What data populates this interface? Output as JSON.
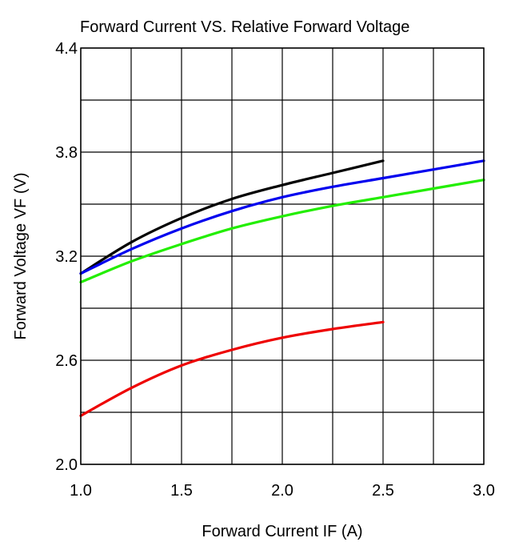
{
  "chart_data": {
    "type": "line",
    "title": "Forward Current VS.  Relative Forward Voltage",
    "xlabel": "Forward Current IF  (A)",
    "ylabel": "Forward  Voltage  VF  (V)",
    "xlim": [
      1.0,
      3.0
    ],
    "ylim": [
      2.0,
      4.4
    ],
    "x_ticks": [
      "1.0",
      "1.5",
      "2.0",
      "2.5",
      "3.0"
    ],
    "y_ticks": [
      "2.0",
      "2.6",
      "3.2",
      "3.8",
      "4.4"
    ],
    "x_gridlines": [
      1.0,
      1.25,
      1.5,
      1.75,
      2.0,
      2.25,
      2.5,
      2.75,
      3.0
    ],
    "y_gridlines": [
      2.0,
      2.3,
      2.6,
      2.9,
      3.2,
      3.5,
      3.8,
      4.1,
      4.4
    ],
    "grid": true,
    "series": [
      {
        "color": "#000000",
        "x": [
          1.0,
          1.25,
          1.5,
          1.75,
          2.0,
          2.25,
          2.5
        ],
        "y": [
          3.1,
          3.28,
          3.42,
          3.53,
          3.61,
          3.68,
          3.75
        ]
      },
      {
        "color": "#0000ee",
        "x": [
          1.0,
          1.25,
          1.5,
          1.75,
          2.0,
          2.25,
          2.5,
          2.75,
          3.0
        ],
        "y": [
          3.1,
          3.24,
          3.36,
          3.46,
          3.54,
          3.6,
          3.65,
          3.7,
          3.75
        ]
      },
      {
        "color": "#22ee00",
        "x": [
          1.0,
          1.25,
          1.5,
          1.75,
          2.0,
          2.25,
          2.5,
          2.75,
          3.0
        ],
        "y": [
          3.05,
          3.17,
          3.27,
          3.36,
          3.43,
          3.49,
          3.54,
          3.59,
          3.64
        ]
      },
      {
        "color": "#ee0000",
        "x": [
          1.0,
          1.25,
          1.5,
          1.75,
          2.0,
          2.25,
          2.5
        ],
        "y": [
          2.28,
          2.44,
          2.57,
          2.66,
          2.73,
          2.78,
          2.82
        ]
      }
    ]
  }
}
